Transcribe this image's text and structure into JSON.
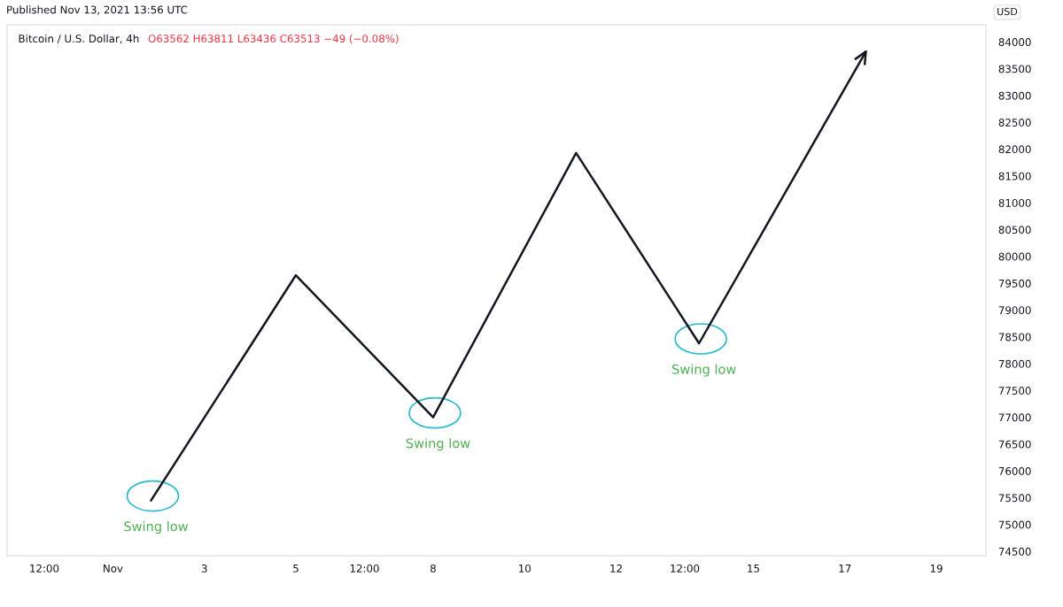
{
  "chart_data": {
    "type": "line",
    "title": "Bitcoin / U.S. Dollar, 4h",
    "subtitle": "O63562 H63811 L63436 C63513 −49 (−0.08%)",
    "ylabel": "USD",
    "x": [
      "2021-11-01T20:00",
      "2021-11-05T00:00",
      "2021-11-08T00:00",
      "2021-11-11T03:00",
      "2021-11-13T19:30",
      "2021-11-17T11:00"
    ],
    "values": [
      75450,
      79650,
      77000,
      81930,
      78380,
      83820
    ],
    "color": "#131722",
    "line_style": "solid",
    "xlim": [
      "2021-10-29T16:30",
      "2021-11-20T02:00"
    ],
    "xticks": [
      {
        "value": "2021-10-30T12:00",
        "label": "12:00"
      },
      {
        "value": "2021-11-01",
        "label": "Nov"
      },
      {
        "value": "2021-11-03",
        "label": "3"
      },
      {
        "value": "2021-11-05",
        "label": "5"
      },
      {
        "value": "2021-11-06T12:00",
        "label": "12:00"
      },
      {
        "value": "2021-11-08",
        "label": "8"
      },
      {
        "value": "2021-11-10",
        "label": "10"
      },
      {
        "value": "2021-11-12",
        "label": "12"
      },
      {
        "value": "2021-11-13T12:00",
        "label": "12:00"
      },
      {
        "value": "2021-11-15",
        "label": "15"
      },
      {
        "value": "2021-11-17",
        "label": "17"
      },
      {
        "value": "2021-11-19",
        "label": "19"
      }
    ],
    "ylim": [
      74420,
      84320
    ],
    "yticks": [
      74500,
      75000,
      75500,
      76000,
      76500,
      77000,
      77500,
      78000,
      78500,
      79000,
      79500,
      80000,
      80500,
      81000,
      81500,
      82000,
      82500,
      83000,
      83500,
      84000
    ],
    "annotations": [
      "Published Nov 13, 2021 13:56 UTC",
      {
        "text": "Swing low",
        "x": "2021-11-01T20:00",
        "y": 75450
      },
      {
        "text": "Swing low",
        "x": "2021-11-08T00:00",
        "y": 77000
      },
      {
        "text": "Swing low",
        "x": "2021-11-13T19:30",
        "y": 78380
      }
    ]
  }
}
